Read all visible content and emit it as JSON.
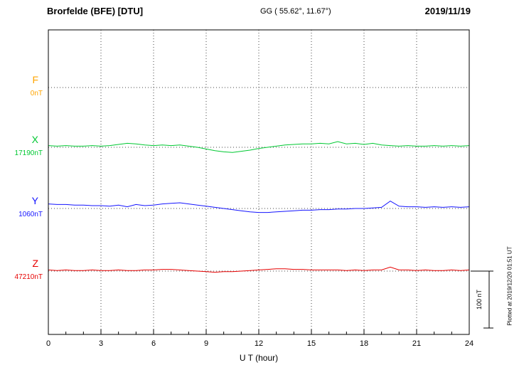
{
  "header": {
    "station": "Brorfelde (BFE)  [DTU]",
    "coords": "GG ( 55.62°,  11.67°)",
    "date": "2019/11/19"
  },
  "footer": {
    "plotted_at": "Plotted at 2019/12/20 01:51 UT"
  },
  "chart_data": {
    "type": "line",
    "xlabel": "U T (hour)",
    "x_range": [
      0,
      24
    ],
    "x_ticks": [
      "0",
      "3",
      "6",
      "9",
      "12",
      "15",
      "18",
      "21",
      "24"
    ],
    "x_start": 0,
    "x_step_hours": 0.5,
    "grid": "dotted vertical every 3h, dotted horizontal baselines",
    "legend_position": "left margin channel labels",
    "scale_reference": {
      "label": "100 nT",
      "nT": 100
    },
    "series": [
      {
        "name": "F",
        "color": "#FFA500",
        "baseline_label": "0nT",
        "baseline_nT": 0,
        "visible": false,
        "offsets_nT": [
          0,
          0,
          0,
          0,
          0,
          0,
          0,
          0,
          0,
          0,
          0,
          0,
          0,
          0,
          0,
          0,
          0,
          0,
          0,
          0,
          0,
          0,
          0,
          0,
          0,
          0,
          0,
          0,
          0,
          0,
          0,
          0,
          0,
          0,
          0,
          0,
          0,
          0,
          0,
          0,
          0,
          0,
          0,
          0,
          0,
          0,
          0,
          0,
          0
        ]
      },
      {
        "name": "X",
        "color": "#00C832",
        "baseline_label": "17190nT",
        "baseline_nT": 17190,
        "visible": true,
        "offsets_nT": [
          3,
          2,
          3,
          2,
          2,
          3,
          2,
          3,
          5,
          7,
          6,
          4,
          3,
          4,
          3,
          4,
          2,
          0,
          -3,
          -6,
          -8,
          -9,
          -7,
          -5,
          -2,
          0,
          2,
          4,
          5,
          6,
          6,
          7,
          6,
          10,
          6,
          7,
          5,
          7,
          4,
          3,
          2,
          3,
          2,
          2,
          3,
          2,
          3,
          2,
          3
        ]
      },
      {
        "name": "Y",
        "color": "#1414FF",
        "baseline_label": "1060nT",
        "baseline_nT": 1060,
        "visible": true,
        "offsets_nT": [
          8,
          7,
          7,
          6,
          6,
          5,
          5,
          4,
          6,
          3,
          7,
          5,
          6,
          8,
          9,
          10,
          8,
          6,
          4,
          2,
          0,
          -2,
          -4,
          -6,
          -7,
          -7,
          -6,
          -5,
          -4,
          -3,
          -3,
          -2,
          -2,
          -1,
          -1,
          0,
          0,
          1,
          2,
          13,
          4,
          3,
          3,
          2,
          3,
          2,
          3,
          2,
          3
        ]
      },
      {
        "name": "Z",
        "color": "#E60000",
        "baseline_label": "47210nT",
        "baseline_nT": 47210,
        "visible": true,
        "offsets_nT": [
          2,
          1,
          2,
          1,
          1,
          2,
          1,
          1,
          2,
          1,
          1,
          2,
          2,
          3,
          3,
          2,
          1,
          0,
          -1,
          -2,
          -1,
          -1,
          0,
          1,
          2,
          3,
          4,
          4,
          3,
          3,
          2,
          2,
          2,
          2,
          1,
          2,
          1,
          2,
          2,
          7,
          2,
          2,
          1,
          2,
          1,
          1,
          2,
          1,
          2
        ]
      }
    ]
  }
}
